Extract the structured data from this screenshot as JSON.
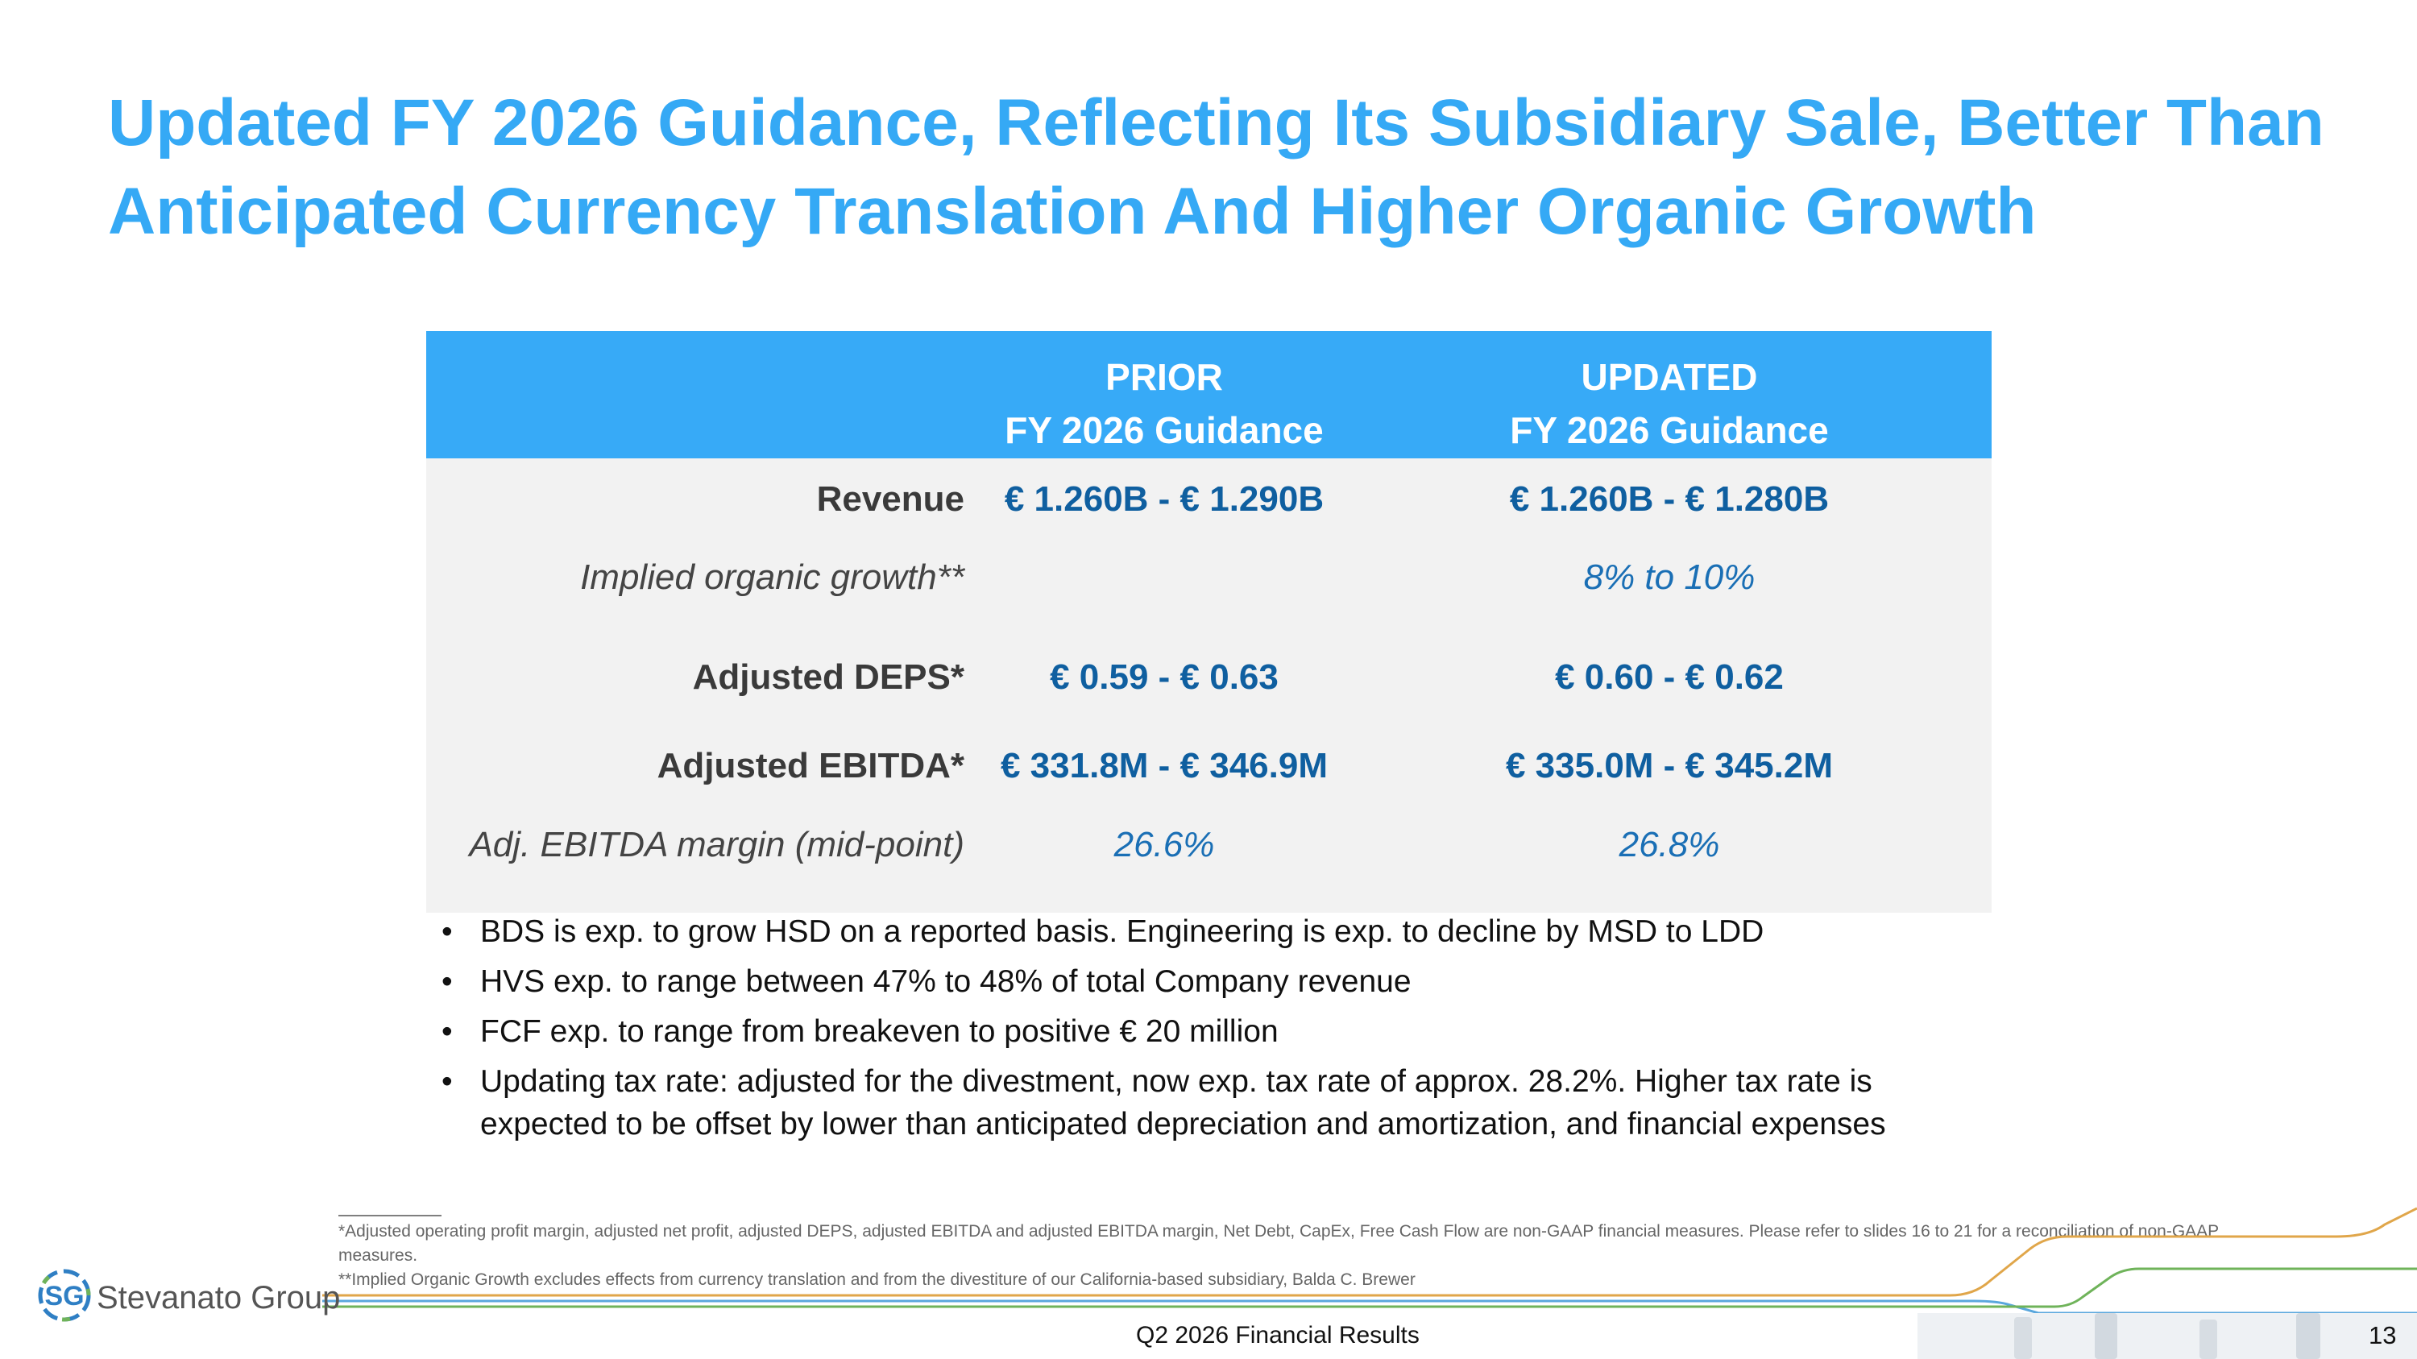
{
  "title": {
    "line1": "Updated FY 2026 Guidance, Reflecting Its Subsidiary Sale, Better Than",
    "line2": "Anticipated Currency Translation And Higher Organic Growth"
  },
  "table": {
    "header": {
      "prior_line1": "PRIOR",
      "prior_line2": "FY 2026 Guidance",
      "updated_line1": "UPDATED",
      "updated_line2": "FY 2026 Guidance"
    },
    "rows": [
      {
        "label": "Revenue",
        "prior": "€ 1.260B - € 1.290B",
        "updated": "€ 1.260B - € 1.280B"
      },
      {
        "label": "Implied organic growth**",
        "prior": "",
        "updated": "8% to 10%"
      },
      {
        "label": "Adjusted DEPS*",
        "prior": "€ 0.59 - € 0.63",
        "updated": "€ 0.60 - € 0.62"
      },
      {
        "label": "Adjusted EBITDA*",
        "prior": "€ 331.8M - € 346.9M",
        "updated": "€ 335.0M - € 345.2M"
      },
      {
        "label": "Adj. EBITDA margin (mid-point)",
        "prior": "26.6%",
        "updated": "26.8%"
      }
    ]
  },
  "bullets": [
    "BDS is exp. to grow HSD on a reported basis. Engineering is exp. to decline by MSD to LDD",
    "HVS exp. to range between 47% to 48% of total Company revenue",
    "FCF exp. to range from breakeven to positive € 20 million",
    "Updating tax rate: adjusted for the divestment, now exp. tax rate of approx. 28.2%. Higher tax rate is expected to be offset by lower than anticipated depreciation and amortization, and financial expenses"
  ],
  "footnotes": {
    "fn1": "*Adjusted operating profit margin, adjusted net profit, adjusted DEPS, adjusted EBITDA and adjusted EBITDA margin, Net Debt, CapEx, Free Cash Flow are non-GAAP financial measures. Please refer to slides 16 to 21 for a reconciliation of non-GAAP measures.",
    "fn2": "**Implied Organic Growth excludes effects from currency translation and from the divestiture of our California-based subsidiary, Balda C. Brewer"
  },
  "footer": {
    "logo_mark": "SG",
    "logo_text": "Stevanato Group",
    "center": "Q2 2026 Financial Results",
    "page": "13"
  },
  "colors": {
    "title": "#35a9f5",
    "header_bg": "#37aaf7",
    "body_bg": "#f2f2f2",
    "value_blue": "#0f5fa0"
  }
}
